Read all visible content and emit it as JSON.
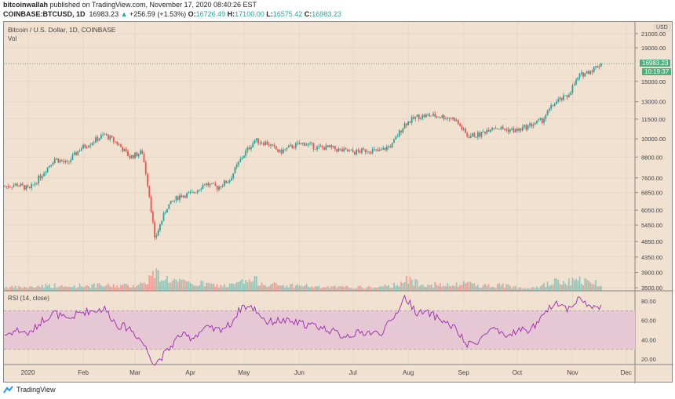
{
  "header": {
    "author": "bitcoinwallah",
    "published": "published on TradingView.com, November 17, 2020 08:40:26 EST",
    "symbol": "COINBASE:BTCUSD, 1D",
    "last": "16983.23",
    "change": "+256.59 (+1.53%)",
    "arrow": "▲",
    "o_label": "O:",
    "o": "16726.49",
    "h_label": "H:",
    "h": "17100.00",
    "l_label": "L:",
    "l": "16575.42",
    "c_label": "C:",
    "c": "16983.23"
  },
  "legend": {
    "title": "Bitcoin / U.S. Dollar, 1D, COINBASE",
    "vol": "Vol",
    "rsi": "RSI (14, close)"
  },
  "axis": {
    "currency": "USD",
    "price_badge": "16983.23",
    "countdown": "10:19:37"
  },
  "footer": {
    "brand": "TradingView"
  },
  "colors": {
    "up": "#26a69a",
    "down": "#ef5350",
    "bg": "#f1e1d0",
    "rsi": "#9c27b0",
    "band": "#e6c8d4"
  },
  "chart_data": [
    {
      "type": "candlestick",
      "title": "Bitcoin / U.S. Dollar, 1D, COINBASE",
      "scale": "log",
      "ylim": [
        3400,
        21500
      ],
      "price_ticks": [
        21000,
        19000,
        15000,
        13000,
        11500,
        10000,
        8800,
        7600,
        6850,
        6050,
        5450,
        4850,
        4350,
        3900,
        3500
      ],
      "x_ticks": [
        "2020",
        "Feb",
        "Mar",
        "Apr",
        "May",
        "Jun",
        "Jul",
        "Aug",
        "Sep",
        "Oct",
        "Nov",
        "Dec"
      ],
      "dates": [
        "2019-12-19",
        "2019-12-26",
        "2020-01-02",
        "2020-01-09",
        "2020-01-16",
        "2020-01-23",
        "2020-01-30",
        "2020-02-06",
        "2020-02-13",
        "2020-02-20",
        "2020-02-27",
        "2020-03-05",
        "2020-03-12",
        "2020-03-19",
        "2020-03-26",
        "2020-04-02",
        "2020-04-09",
        "2020-04-16",
        "2020-04-23",
        "2020-04-30",
        "2020-05-07",
        "2020-05-14",
        "2020-05-21",
        "2020-05-28",
        "2020-06-04",
        "2020-06-11",
        "2020-06-18",
        "2020-06-25",
        "2020-07-02",
        "2020-07-09",
        "2020-07-16",
        "2020-07-23",
        "2020-07-30",
        "2020-08-06",
        "2020-08-13",
        "2020-08-20",
        "2020-08-27",
        "2020-09-03",
        "2020-09-10",
        "2020-09-17",
        "2020-09-24",
        "2020-10-01",
        "2020-10-08",
        "2020-10-15",
        "2020-10-22",
        "2020-10-29",
        "2020-11-05",
        "2020-11-12",
        "2020-11-17"
      ],
      "close": [
        7150,
        7250,
        7000,
        7800,
        8700,
        8400,
        9300,
        9800,
        10300,
        9700,
        8800,
        9100,
        4900,
        6200,
        6700,
        6800,
        7300,
        7100,
        7500,
        8800,
        9900,
        9700,
        9100,
        9500,
        9700,
        9400,
        9400,
        9200,
        9100,
        9250,
        9150,
        9600,
        11100,
        11700,
        11800,
        11700,
        11500,
        10200,
        10300,
        10900,
        10700,
        10600,
        11000,
        11400,
        12900,
        13500,
        15600,
        16300,
        16983.23
      ],
      "volume_rel": [
        2,
        2,
        2,
        3,
        3,
        2,
        3,
        3,
        3,
        3,
        3,
        4,
        10,
        7,
        5,
        4,
        4,
        3,
        3,
        5,
        6,
        4,
        3,
        3,
        3,
        2,
        2,
        2,
        2,
        2,
        2,
        3,
        6,
        5,
        4,
        3,
        3,
        5,
        3,
        3,
        3,
        2,
        2,
        3,
        5,
        5,
        6,
        5,
        4
      ]
    },
    {
      "type": "line",
      "title": "RSI (14, close)",
      "ylim": [
        10,
        88
      ],
      "y_ticks": [
        80,
        60,
        40,
        20
      ],
      "band": [
        30,
        70
      ],
      "values": [
        45,
        50,
        46,
        60,
        68,
        60,
        68,
        70,
        72,
        55,
        52,
        38,
        15,
        28,
        45,
        42,
        52,
        50,
        55,
        75,
        72,
        58,
        60,
        58,
        56,
        54,
        50,
        44,
        46,
        48,
        46,
        60,
        84,
        68,
        67,
        60,
        52,
        34,
        40,
        52,
        42,
        50,
        50,
        62,
        80,
        72,
        83,
        72,
        76
      ]
    }
  ]
}
